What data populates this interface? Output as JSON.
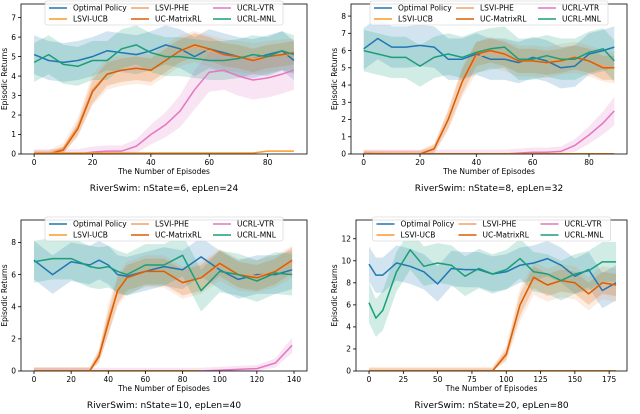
{
  "legend_order": [
    "Optimal Policy",
    "LSVI-UCB",
    "LSVI-PHE",
    "UC-MatrixRL",
    "UCRL-VTR",
    "UCRL-MNL"
  ],
  "colors": {
    "Optimal Policy": "#1f77b4",
    "LSVI-PHE": "#f2a26e",
    "LSVI-UCB": "#fb9a29",
    "UC-MatrixRL": "#d95f02",
    "UCRL-VTR": "#e377c2",
    "UCRL-MNL": "#1b9e77"
  },
  "chart_data": [
    {
      "type": "line",
      "title": "RiverSwim: nState=6, epLen=24",
      "xlabel": "The Number of Episodes",
      "ylabel": "Episodic Returns",
      "xlim": [
        -4.5,
        93.5
      ],
      "ylim": [
        0,
        7.7
      ],
      "xticks": [
        0,
        20,
        40,
        60,
        80
      ],
      "yticks": [
        0,
        1,
        2,
        3,
        4,
        5,
        6,
        7
      ],
      "legend": "top-center",
      "grid": false,
      "x": [
        0,
        5,
        10,
        15,
        20,
        25,
        30,
        35,
        40,
        45,
        50,
        55,
        60,
        65,
        70,
        75,
        80,
        85,
        89
      ],
      "series": [
        {
          "name": "Optimal Policy",
          "std": 1.0,
          "values": [
            5.1,
            4.8,
            4.7,
            4.8,
            5.0,
            5.3,
            5.2,
            5.1,
            5.3,
            5.6,
            5.4,
            5.0,
            5.4,
            5.2,
            5.0,
            4.9,
            5.1,
            5.3,
            4.8
          ]
        },
        {
          "name": "LSVI-PHE",
          "std": 0.8,
          "values": [
            0,
            0,
            0.3,
            1.4,
            3.3,
            4.1,
            4.3,
            4.4,
            4.3,
            4.8,
            5.3,
            5.5,
            5.3,
            5.1,
            5.0,
            4.9,
            5.0,
            5.1,
            5.1
          ]
        },
        {
          "name": "UC-MatrixRL",
          "std": 0.6,
          "values": [
            0,
            0,
            0.2,
            1.3,
            3.2,
            4.1,
            4.3,
            4.4,
            4.3,
            4.8,
            5.3,
            5.6,
            5.4,
            5.1,
            5.0,
            4.8,
            5.0,
            5.1,
            5.2
          ]
        },
        {
          "name": "UCRL-VTR",
          "std": 1.0,
          "values": [
            0,
            0,
            0,
            0,
            0.1,
            0.15,
            0.15,
            0.4,
            1.0,
            1.5,
            2.2,
            3.3,
            4.2,
            4.3,
            4.0,
            3.8,
            3.9,
            4.1,
            4.3
          ]
        },
        {
          "name": "UCRL-MNL",
          "std": 1.0,
          "values": [
            4.7,
            5.1,
            4.6,
            4.5,
            4.8,
            4.8,
            5.4,
            5.6,
            5.2,
            5.0,
            5.0,
            4.9,
            4.8,
            4.8,
            4.9,
            5.1,
            5.0,
            5.3,
            5.1
          ]
        },
        {
          "name": "LSVI-UCB",
          "std": 0.1,
          "values": [
            0.05,
            0.05,
            0.05,
            0.05,
            0.05,
            0.05,
            0.05,
            0.05,
            0.05,
            0.05,
            0.05,
            0.05,
            0.05,
            0.05,
            0.05,
            0.05,
            0.15,
            0.15,
            0.15
          ]
        }
      ]
    },
    {
      "type": "line",
      "title": "RiverSwim: nState=8, epLen=32",
      "xlabel": "The Number of Episodes",
      "ylabel": "Episodic Returns",
      "xlim": [
        -4.5,
        93.5
      ],
      "ylim": [
        0,
        8.7
      ],
      "xticks": [
        0,
        20,
        40,
        60,
        80
      ],
      "yticks": [
        0,
        1,
        2,
        3,
        4,
        5,
        6,
        7,
        8
      ],
      "legend": "top-center",
      "grid": false,
      "x": [
        0,
        5,
        10,
        15,
        20,
        25,
        30,
        35,
        40,
        45,
        50,
        55,
        60,
        65,
        70,
        75,
        80,
        85,
        89
      ],
      "series": [
        {
          "name": "Optimal Policy",
          "std": 1.2,
          "values": [
            6.1,
            6.7,
            6.2,
            6.2,
            6.3,
            6.2,
            5.5,
            5.5,
            5.8,
            5.5,
            5.5,
            5.3,
            5.6,
            5.4,
            5.0,
            5.1,
            5.8,
            6.0,
            6.2
          ]
        },
        {
          "name": "LSVI-PHE",
          "std": 0.9,
          "values": [
            0,
            0,
            0,
            0,
            0,
            0.3,
            2.0,
            4.2,
            5.6,
            5.9,
            5.7,
            5.4,
            5.4,
            5.3,
            5.5,
            5.6,
            5.4,
            5.1,
            5.0
          ]
        },
        {
          "name": "UC-MatrixRL",
          "std": 0.7,
          "values": [
            0,
            0,
            0,
            0,
            0,
            0.3,
            2.0,
            4.2,
            5.8,
            6.0,
            5.8,
            5.4,
            5.4,
            5.3,
            5.4,
            5.6,
            5.4,
            5.0,
            5.0
          ]
        },
        {
          "name": "UCRL-VTR",
          "std": 1.0,
          "values": [
            0,
            0,
            0,
            0,
            0,
            0,
            0,
            0,
            0,
            0,
            0,
            0.05,
            0.1,
            0.1,
            0.15,
            0.5,
            1.1,
            1.8,
            2.5
          ]
        },
        {
          "name": "UCRL-MNL",
          "std": 1.2,
          "values": [
            6.0,
            5.8,
            5.6,
            5.6,
            5.1,
            5.6,
            5.8,
            5.6,
            5.9,
            6.1,
            6.2,
            5.5,
            5.5,
            5.7,
            5.5,
            5.5,
            5.9,
            6.1,
            5.4
          ]
        },
        {
          "name": "LSVI-UCB",
          "std": 0.05,
          "values": [
            0.05,
            0.03,
            0.02,
            0.02,
            0.02,
            0.02,
            0.02,
            0.02,
            0.02,
            0.02,
            0.02,
            0.02,
            0.02,
            0.02,
            0.02,
            0.02,
            0.02,
            0.02,
            0.02
          ]
        }
      ]
    },
    {
      "type": "line",
      "title": "RiverSwim: nState=10, epLen=40",
      "xlabel": "The Number of Episodes",
      "ylabel": "Episodic Returns",
      "xlim": [
        -7,
        147
      ],
      "ylim": [
        0,
        9.4
      ],
      "xticks": [
        0,
        20,
        40,
        60,
        80,
        100,
        120,
        140
      ],
      "yticks": [
        0,
        2,
        4,
        6,
        8
      ],
      "legend": "top-center",
      "grid": false,
      "x": [
        0,
        10,
        20,
        30,
        35,
        40,
        45,
        50,
        60,
        70,
        80,
        90,
        100,
        110,
        120,
        130,
        139
      ],
      "series": [
        {
          "name": "Optimal Policy",
          "std": 1.2,
          "values": [
            6.9,
            6.0,
            6.8,
            6.6,
            6.9,
            6.6,
            6.0,
            5.9,
            6.2,
            6.5,
            6.3,
            7.1,
            6.3,
            5.7,
            6.0,
            6.0,
            6.3
          ]
        },
        {
          "name": "LSVI-PHE",
          "std": 1.0,
          "values": [
            0,
            0,
            0,
            0,
            1.0,
            3.2,
            5.0,
            5.8,
            6.2,
            6.2,
            5.5,
            5.8,
            6.6,
            6.0,
            5.9,
            6.2,
            6.8
          ]
        },
        {
          "name": "UC-MatrixRL",
          "std": 0.8,
          "values": [
            0,
            0,
            0,
            0,
            0.9,
            3.0,
            5.0,
            5.8,
            6.2,
            6.2,
            5.5,
            5.8,
            6.7,
            6.0,
            5.8,
            6.2,
            6.9
          ]
        },
        {
          "name": "UCRL-VTR",
          "std": 0.8,
          "values": [
            0,
            0,
            0,
            0,
            0,
            0,
            0,
            0,
            0,
            0,
            0,
            0,
            0.05,
            0.1,
            0.15,
            0.5,
            1.6
          ]
        },
        {
          "name": "UCRL-MNL",
          "std": 1.3,
          "values": [
            6.8,
            7.0,
            7.0,
            6.5,
            6.4,
            6.5,
            6.2,
            6.0,
            6.6,
            6.6,
            7.2,
            5.0,
            6.2,
            6.0,
            5.6,
            6.1,
            6.0
          ]
        },
        {
          "name": "LSVI-UCB",
          "std": 0.03,
          "values": [
            0.02,
            0.02,
            0.02,
            0.02,
            0.02,
            0.02,
            0.02,
            0.02,
            0.02,
            0.02,
            0.02,
            0.02,
            null,
            null,
            null,
            null,
            null
          ]
        }
      ]
    },
    {
      "type": "line",
      "title": "RiverSwim: nState=20, epLen=80",
      "xlabel": "The Number of Episodes",
      "ylabel": "Episodic Returns",
      "xlim": [
        -9.5,
        188
      ],
      "ylim": [
        0,
        13.7
      ],
      "xticks": [
        0,
        25,
        50,
        75,
        100,
        125,
        150,
        175
      ],
      "yticks": [
        0,
        2,
        4,
        6,
        8,
        10,
        12
      ],
      "legend": "top-center",
      "grid": false,
      "x": [
        0,
        5,
        10,
        20,
        30,
        40,
        50,
        60,
        70,
        80,
        90,
        100,
        110,
        120,
        130,
        140,
        150,
        160,
        170,
        180
      ],
      "series": [
        {
          "name": "Optimal Policy",
          "std": 1.6,
          "values": [
            9.7,
            8.7,
            8.7,
            9.8,
            9.5,
            9.0,
            7.9,
            9.3,
            9.2,
            9.2,
            8.8,
            9.0,
            9.6,
            9.8,
            10.2,
            9.6,
            8.6,
            9.2,
            7.3,
            8.0
          ]
        },
        {
          "name": "LSVI-PHE",
          "std": 1.5,
          "values": [
            0,
            0,
            0,
            0,
            0,
            0,
            0,
            0,
            0,
            0,
            0,
            1.6,
            6.0,
            8.4,
            7.8,
            8.2,
            8.0,
            7.0,
            8.0,
            7.8
          ]
        },
        {
          "name": "UC-MatrixRL",
          "std": 1.0,
          "values": [
            0,
            0,
            0,
            0,
            0,
            0,
            0,
            0,
            0,
            0,
            0,
            1.5,
            6.0,
            8.5,
            7.8,
            8.2,
            8.0,
            7.0,
            8.0,
            7.8
          ]
        },
        {
          "name": "UCRL-VTR",
          "std": 0.02,
          "values": [
            0.02,
            0.02,
            0.02,
            0.02,
            0.02,
            0.02,
            0.02,
            0.02,
            0.02,
            0.02,
            0.02,
            0.02,
            0.02,
            0.02,
            0.02,
            0.02,
            0.02,
            0.02,
            0.02,
            0.02
          ]
        },
        {
          "name": "UCRL-MNL",
          "std": 1.8,
          "values": [
            6.2,
            4.8,
            5.5,
            9.0,
            11.0,
            9.5,
            9.8,
            9.6,
            8.6,
            9.3,
            8.8,
            9.2,
            10.2,
            9.0,
            8.8,
            8.2,
            8.8,
            9.1,
            9.9,
            9.9
          ]
        },
        {
          "name": "LSVI-UCB",
          "std": 0.02,
          "values": [
            0.02,
            0.02,
            0.02,
            0.02,
            0.02,
            0.02,
            0.02,
            0.02,
            0.02,
            0.02,
            0.02,
            0.02,
            0.02,
            0.02,
            0.02,
            0.02,
            0.02,
            0.02,
            0.02,
            0.02
          ]
        }
      ]
    }
  ]
}
